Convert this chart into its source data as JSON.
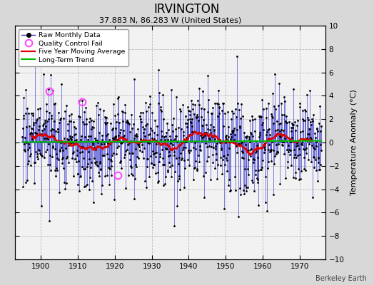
{
  "title": "IRVINGTON",
  "subtitle": "37.883 N, 86.283 W (United States)",
  "ylabel": "Temperature Anomaly (°C)",
  "credit": "Berkeley Earth",
  "year_start": 1895,
  "year_end": 1976,
  "ylim": [
    -10,
    10
  ],
  "yticks": [
    -10,
    -8,
    -6,
    -4,
    -2,
    0,
    2,
    4,
    6,
    8,
    10
  ],
  "xticks": [
    1900,
    1910,
    1920,
    1930,
    1940,
    1950,
    1960,
    1970
  ],
  "bg_color": "#d8d8d8",
  "plot_bg_color": "#f2f2f2",
  "raw_line_color": "#3333cc",
  "raw_marker_color": "#000000",
  "moving_avg_color": "#dd0000",
  "trend_color": "#00bb00",
  "qc_fail_color": "#ff44ff",
  "qc_fail_points": [
    [
      1902.3,
      4.4
    ],
    [
      1911.2,
      3.5
    ],
    [
      1920.8,
      -2.8
    ]
  ],
  "seed": 17,
  "noise_std": 2.0
}
